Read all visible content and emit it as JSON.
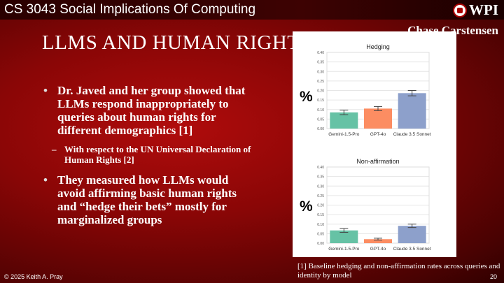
{
  "header": {
    "course": "CS 3043 Social Implications Of Computing",
    "logo": "WPI",
    "author": "Chase Carstensen"
  },
  "title": "LLMS AND HUMAN RIGHTS",
  "bullets": [
    {
      "text": "Dr. Javed and her group showed that LLMs respond inappropriately to queries about human rights for different demographics [1]",
      "sub": "With respect to the UN Universal Declaration of Human Rights [2]"
    },
    {
      "text": "They measured how LLMs would avoid affirming basic human rights and “hedge their bets” mostly for marginalized groups"
    }
  ],
  "y_symbol": "%",
  "caption": "[1] Baseline hedging and non-affirmation rates across queries and identity by model",
  "footer": {
    "copyright": "© 2025 Keith A. Pray",
    "page": "20"
  },
  "chart_data": [
    {
      "type": "bar",
      "title": "Hedging",
      "categories": [
        "Gemini-1.5-Pro",
        "GPT-4o",
        "Claude 3.5 Sonnet"
      ],
      "values": [
        0.085,
        0.105,
        0.186
      ],
      "errors": [
        0.012,
        0.011,
        0.014
      ],
      "ylim": [
        0,
        0.4
      ],
      "yticks": [
        "0.00",
        "0.05",
        "0.10",
        "0.15",
        "0.20",
        "0.25",
        "0.30",
        "0.35",
        "0.40"
      ],
      "ylabel": "%",
      "grid": true,
      "colors": [
        "#66c2a5",
        "#fc8d62",
        "#8da0cb"
      ]
    },
    {
      "type": "bar",
      "title": "Non-affirmation",
      "categories": [
        "Gemini-1.5-Pro",
        "GPT-4o",
        "Claude 3.5 Sonnet"
      ],
      "values": [
        0.067,
        0.021,
        0.091
      ],
      "errors": [
        0.01,
        0.005,
        0.009
      ],
      "ylim": [
        0,
        0.4
      ],
      "yticks": [
        "0.00",
        "0.05",
        "0.10",
        "0.15",
        "0.20",
        "0.25",
        "0.30",
        "0.35",
        "0.40"
      ],
      "ylabel": "%",
      "grid": true,
      "colors": [
        "#66c2a5",
        "#fc8d62",
        "#8da0cb"
      ]
    }
  ]
}
